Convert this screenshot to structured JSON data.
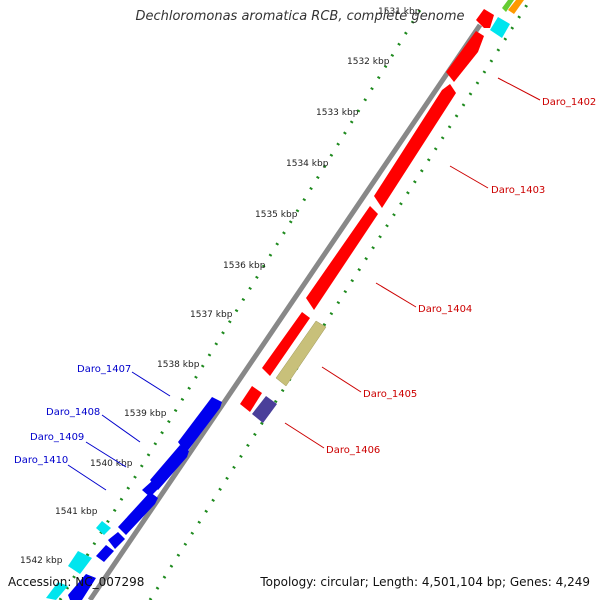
{
  "title": "Dechloromonas aromatica RCB, complete genome",
  "footer": {
    "accession": "Accession: NC_007298",
    "summary": "Topology: circular; Length: 4,501,104 bp; Genes: 4,249"
  },
  "scale": {
    "ticks": [
      "1531 kbp",
      "1532 kbp",
      "1533 kbp",
      "1534 kbp",
      "1535 kbp",
      "1536 kbp",
      "1537 kbp",
      "1538 kbp",
      "1539 kbp",
      "1540 kbp",
      "1541 kbp",
      "1542 kbp"
    ]
  },
  "gene_labels": {
    "forward": [
      "Daro_1402",
      "Daro_1403",
      "Daro_1404",
      "Daro_1405",
      "Daro_1406"
    ],
    "reverse": [
      "Daro_1407",
      "Daro_1408",
      "Daro_1409",
      "Daro_1410"
    ]
  },
  "colors": {
    "forward_cds": "#ff0000",
    "reverse_cds": "#0000ee",
    "backbone": "#888888",
    "gc_dots": "#1e8a1e",
    "gene_label_forward": "#cc0000",
    "gene_label_reverse": "#0000cc",
    "misc_feature": "#c8c07a",
    "rna_feature": "#00e5ee",
    "purple_feature": "#4a3f9a",
    "orange_feature": "#ff9900"
  }
}
